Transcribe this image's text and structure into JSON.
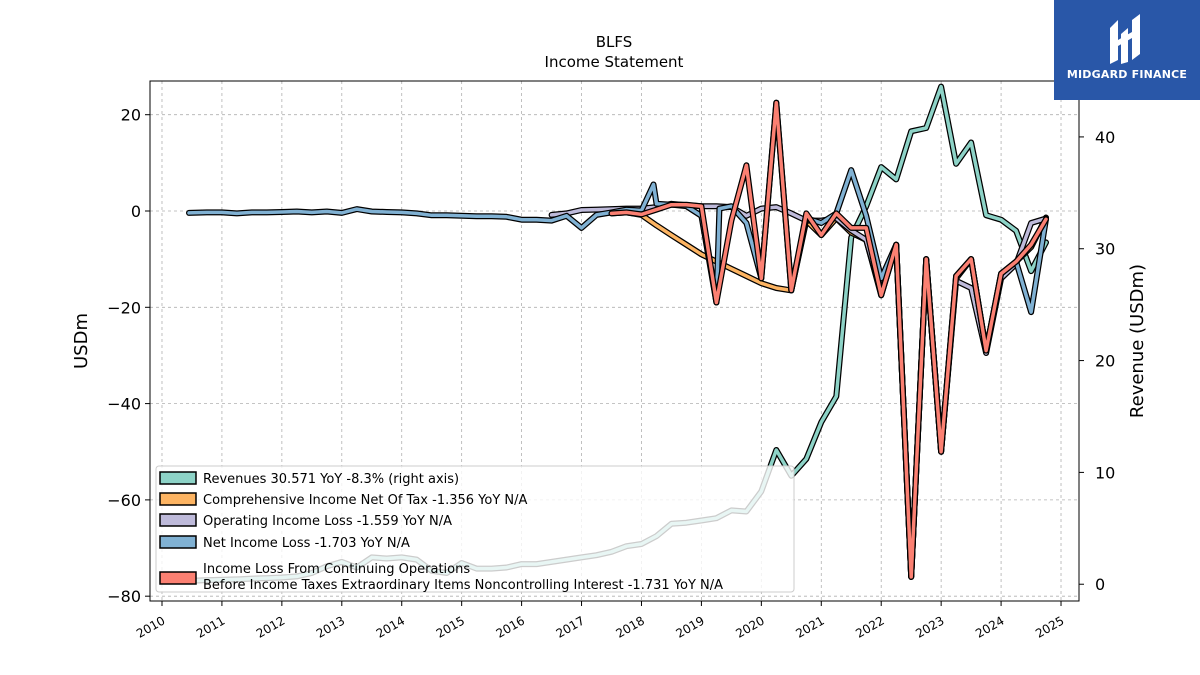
{
  "chart_data": {
    "type": "line",
    "title": "BLFS",
    "subtitle": "Income Statement",
    "ylabel_left": "USDm",
    "ylabel_right": "Revenue (USDm)",
    "xlim": [
      2009.8,
      2025.3
    ],
    "ylim_left": [
      -81,
      27
    ],
    "ylim_right": [
      -1.5,
      45
    ],
    "x_ticks": [
      2010,
      2011,
      2012,
      2013,
      2014,
      2015,
      2016,
      2017,
      2018,
      2019,
      2020,
      2021,
      2022,
      2023,
      2024,
      2025
    ],
    "y_ticks_left": [
      20,
      0,
      -20,
      -40,
      -60,
      -80
    ],
    "y_ticks_right": [
      40,
      30,
      20,
      10,
      0
    ],
    "grid": true,
    "legend_position": "lower-left",
    "series": [
      {
        "name": "Revenues  30.571 YoY -8.3% (right axis)",
        "color": "#8dd3c7",
        "axis": "right",
        "points": [
          [
            2010.45,
            0.3
          ],
          [
            2010.7,
            0.35
          ],
          [
            2011.0,
            0.4
          ],
          [
            2011.3,
            0.45
          ],
          [
            2011.5,
            0.5
          ],
          [
            2011.75,
            0.55
          ],
          [
            2012.0,
            0.6
          ],
          [
            2012.25,
            0.7
          ],
          [
            2012.5,
            1.0
          ],
          [
            2012.75,
            1.6
          ],
          [
            2013.0,
            2.0
          ],
          [
            2013.25,
            1.5
          ],
          [
            2013.5,
            2.4
          ],
          [
            2013.75,
            2.3
          ],
          [
            2014.0,
            2.4
          ],
          [
            2014.25,
            2.2
          ],
          [
            2014.5,
            1.2
          ],
          [
            2014.75,
            1.0
          ],
          [
            2015.0,
            1.9
          ],
          [
            2015.25,
            1.4
          ],
          [
            2015.5,
            1.4
          ],
          [
            2015.75,
            1.5
          ],
          [
            2016.0,
            1.8
          ],
          [
            2016.25,
            1.8
          ],
          [
            2016.5,
            2.0
          ],
          [
            2016.75,
            2.2
          ],
          [
            2017.0,
            2.4
          ],
          [
            2017.25,
            2.6
          ],
          [
            2017.5,
            2.9
          ],
          [
            2017.75,
            3.4
          ],
          [
            2018.0,
            3.6
          ],
          [
            2018.25,
            4.3
          ],
          [
            2018.5,
            5.4
          ],
          [
            2018.75,
            5.5
          ],
          [
            2019.0,
            5.7
          ],
          [
            2019.25,
            5.9
          ],
          [
            2019.5,
            6.6
          ],
          [
            2019.75,
            6.5
          ],
          [
            2020.0,
            8.3
          ],
          [
            2020.25,
            12.0
          ],
          [
            2020.5,
            9.7
          ],
          [
            2020.75,
            11.2
          ],
          [
            2021.0,
            14.5
          ],
          [
            2021.25,
            16.8
          ],
          [
            2021.5,
            31.0
          ],
          [
            2021.75,
            33.8
          ],
          [
            2022.0,
            37.3
          ],
          [
            2022.25,
            36.2
          ],
          [
            2022.5,
            40.5
          ],
          [
            2022.75,
            40.8
          ],
          [
            2023.0,
            44.5
          ],
          [
            2023.25,
            37.6
          ],
          [
            2023.5,
            39.5
          ],
          [
            2023.75,
            33.0
          ],
          [
            2024.0,
            32.6
          ],
          [
            2024.25,
            31.6
          ],
          [
            2024.5,
            28.0
          ],
          [
            2024.75,
            30.571
          ]
        ]
      },
      {
        "name": "Comprehensive Income Net Of Tax  -1.356 YoY N/A",
        "color": "#fdb462",
        "axis": "left",
        "points": [
          [
            2017.5,
            -0.5
          ],
          [
            2017.75,
            -0.3
          ],
          [
            2018.0,
            -0.8
          ],
          [
            2018.25,
            -3.0
          ],
          [
            2018.5,
            -5.0
          ],
          [
            2018.75,
            -7.0
          ],
          [
            2019.0,
            -9.0
          ],
          [
            2019.25,
            -10.5
          ],
          [
            2019.5,
            -12.0
          ],
          [
            2019.75,
            -13.5
          ],
          [
            2020.0,
            -15.0
          ],
          [
            2020.25,
            -16.0
          ],
          [
            2020.5,
            -16.5
          ],
          [
            2020.75,
            -2.0
          ],
          [
            2021.0,
            -5.0
          ],
          [
            2021.25,
            -1.5
          ],
          [
            2021.5,
            -4.5
          ],
          [
            2021.75,
            -6.0
          ],
          [
            2022.0,
            -17.5
          ],
          [
            2022.25,
            -7.0
          ],
          [
            2022.5,
            -76.0
          ],
          [
            2022.75,
            -10.0
          ],
          [
            2023.0,
            -50.0
          ],
          [
            2023.25,
            -14.0
          ],
          [
            2023.5,
            -10.0
          ],
          [
            2023.75,
            -29.0
          ],
          [
            2024.0,
            -13.5
          ],
          [
            2024.25,
            -10.5
          ],
          [
            2024.5,
            -7.5
          ],
          [
            2024.75,
            -1.356
          ]
        ]
      },
      {
        "name": "Operating Income Loss  -1.559 YoY N/A",
        "color": "#bebada",
        "axis": "left",
        "points": [
          [
            2016.5,
            -0.8
          ],
          [
            2016.75,
            -0.5
          ],
          [
            2017.0,
            0.2
          ],
          [
            2017.25,
            0.3
          ],
          [
            2017.5,
            0.4
          ],
          [
            2017.75,
            0.5
          ],
          [
            2018.0,
            0.5
          ],
          [
            2018.25,
            0.8
          ],
          [
            2018.5,
            1.5
          ],
          [
            2018.75,
            1.2
          ],
          [
            2019.0,
            1.0
          ],
          [
            2019.25,
            1.0
          ],
          [
            2019.5,
            0.8
          ],
          [
            2019.75,
            -1.0
          ],
          [
            2020.0,
            0.5
          ],
          [
            2020.25,
            0.8
          ],
          [
            2020.5,
            -0.5
          ],
          [
            2020.75,
            -2.0
          ],
          [
            2021.0,
            -2.0
          ],
          [
            2021.25,
            -1.5
          ],
          [
            2021.5,
            -4.0
          ],
          [
            2021.75,
            -6.0
          ],
          [
            2022.0,
            -17.0
          ],
          [
            2022.25,
            -7.0
          ],
          [
            2022.5,
            -76.0
          ],
          [
            2022.75,
            -10.0
          ],
          [
            2023.0,
            -50.0
          ],
          [
            2023.25,
            -14.5
          ],
          [
            2023.5,
            -16.0
          ],
          [
            2023.75,
            -29.5
          ],
          [
            2024.0,
            -14.0
          ],
          [
            2024.25,
            -11.0
          ],
          [
            2024.5,
            -2.5
          ],
          [
            2024.75,
            -1.559
          ]
        ]
      },
      {
        "name": "Net Income Loss  -1.703 YoY N/A",
        "color": "#80b1d3",
        "axis": "left",
        "points": [
          [
            2010.45,
            -0.4
          ],
          [
            2010.75,
            -0.3
          ],
          [
            2011.0,
            -0.3
          ],
          [
            2011.25,
            -0.5
          ],
          [
            2011.5,
            -0.3
          ],
          [
            2011.75,
            -0.3
          ],
          [
            2012.0,
            -0.2
          ],
          [
            2012.25,
            -0.1
          ],
          [
            2012.5,
            -0.3
          ],
          [
            2012.75,
            -0.1
          ],
          [
            2013.0,
            -0.4
          ],
          [
            2013.25,
            0.4
          ],
          [
            2013.5,
            -0.1
          ],
          [
            2013.75,
            -0.2
          ],
          [
            2014.0,
            -0.3
          ],
          [
            2014.25,
            -0.5
          ],
          [
            2014.5,
            -0.9
          ],
          [
            2014.75,
            -0.9
          ],
          [
            2015.0,
            -1.0
          ],
          [
            2015.25,
            -1.1
          ],
          [
            2015.5,
            -1.1
          ],
          [
            2015.75,
            -1.2
          ],
          [
            2016.0,
            -1.8
          ],
          [
            2016.25,
            -1.8
          ],
          [
            2016.5,
            -2.0
          ],
          [
            2016.75,
            -1.0
          ],
          [
            2017.0,
            -3.5
          ],
          [
            2017.25,
            -0.8
          ],
          [
            2017.5,
            -0.3
          ],
          [
            2017.75,
            0.3
          ],
          [
            2018.0,
            0.1
          ],
          [
            2018.2,
            5.5
          ],
          [
            2018.25,
            1.5
          ],
          [
            2018.5,
            1.3
          ],
          [
            2018.75,
            1.0
          ],
          [
            2019.0,
            -1.0
          ],
          [
            2019.25,
            -19.0
          ],
          [
            2019.3,
            0.5
          ],
          [
            2019.5,
            1.0
          ],
          [
            2019.75,
            -2.5
          ],
          [
            2020.0,
            -14.0
          ],
          [
            2020.25,
            22.5
          ],
          [
            2020.5,
            -16.5
          ],
          [
            2020.75,
            -1.5
          ],
          [
            2021.0,
            -2.5
          ],
          [
            2021.25,
            -0.5
          ],
          [
            2021.5,
            8.5
          ],
          [
            2021.75,
            -1.0
          ],
          [
            2022.0,
            -14.0
          ],
          [
            2022.25,
            -7.0
          ],
          [
            2022.5,
            -76.0
          ],
          [
            2022.75,
            -10.0
          ],
          [
            2023.0,
            -50.0
          ],
          [
            2023.25,
            -13.5
          ],
          [
            2023.5,
            -10.0
          ],
          [
            2023.75,
            -29.0
          ],
          [
            2024.0,
            -13.0
          ],
          [
            2024.25,
            -10.5
          ],
          [
            2024.5,
            -21.0
          ],
          [
            2024.75,
            -1.703
          ]
        ]
      },
      {
        "name": "Income Loss From Continuing Operations Before Income Taxes Extraordinary Items Noncontrolling Interest  -1.731 YoY N/A",
        "legend_lines": [
          "Income Loss From Continuing Operations",
          "Before Income Taxes Extraordinary Items Noncontrolling Interest  -1.731 YoY N/A"
        ],
        "color": "#fb8072",
        "axis": "left",
        "points": [
          [
            2017.5,
            -0.5
          ],
          [
            2017.75,
            -0.3
          ],
          [
            2018.0,
            -0.7
          ],
          [
            2018.25,
            0.3
          ],
          [
            2018.5,
            1.3
          ],
          [
            2018.75,
            1.3
          ],
          [
            2019.0,
            1.0
          ],
          [
            2019.25,
            -19.0
          ],
          [
            2019.5,
            -2.0
          ],
          [
            2019.75,
            9.5
          ],
          [
            2020.0,
            -14.0
          ],
          [
            2020.25,
            22.5
          ],
          [
            2020.5,
            -16.5
          ],
          [
            2020.75,
            -0.5
          ],
          [
            2021.0,
            -5.0
          ],
          [
            2021.25,
            -0.5
          ],
          [
            2021.5,
            -3.5
          ],
          [
            2021.75,
            -3.5
          ],
          [
            2022.0,
            -17.5
          ],
          [
            2022.25,
            -7.0
          ],
          [
            2022.5,
            -76.0
          ],
          [
            2022.75,
            -10.0
          ],
          [
            2023.0,
            -50.0
          ],
          [
            2023.25,
            -13.5
          ],
          [
            2023.5,
            -10.0
          ],
          [
            2023.75,
            -29.0
          ],
          [
            2024.0,
            -13.0
          ],
          [
            2024.25,
            -10.5
          ],
          [
            2024.5,
            -7.0
          ],
          [
            2024.75,
            -1.731
          ]
        ]
      }
    ]
  },
  "logo": {
    "text": "MIDGARD FINANCE",
    "bg_color": "#2957a8"
  }
}
